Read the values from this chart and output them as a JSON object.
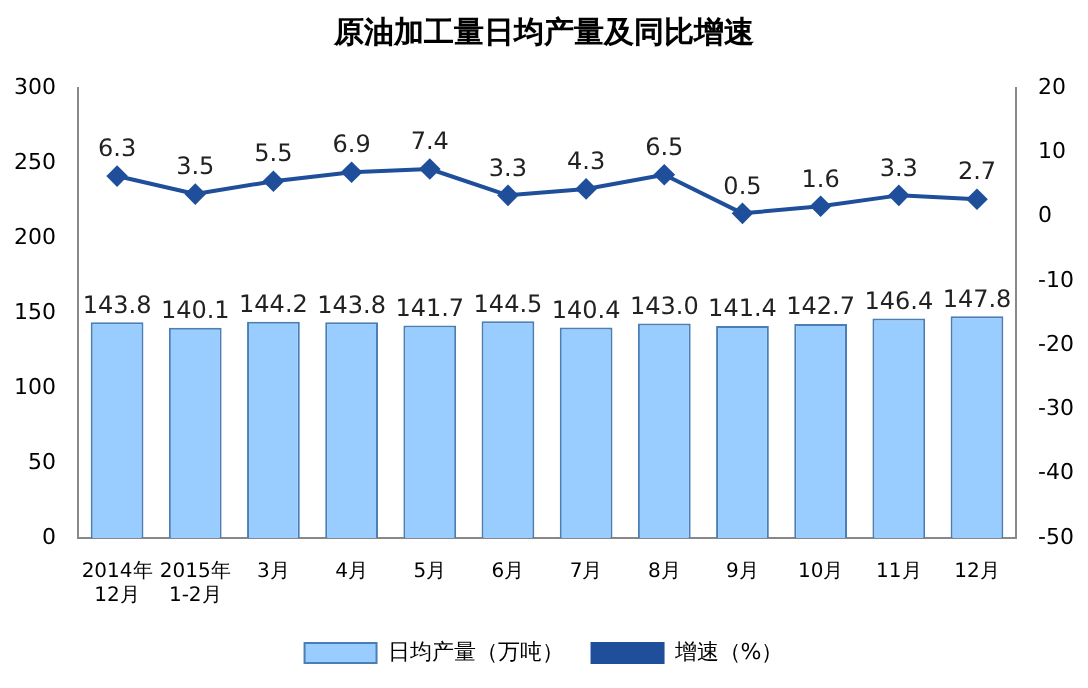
{
  "chart_data": {
    "type": "bar",
    "title": "原油加工量日均产量及同比增速",
    "categories": [
      "2014年\n12月",
      "2015年\n1-2月",
      "3月",
      "4月",
      "5月",
      "6月",
      "7月",
      "8月",
      "9月",
      "10月",
      "11月",
      "12月"
    ],
    "series": [
      {
        "name": "日均产量（万吨）",
        "color": "#99ccff",
        "values": [
          143.8,
          140.1,
          144.2,
          143.8,
          141.7,
          144.5,
          140.4,
          143.0,
          141.4,
          142.7,
          146.4,
          147.8
        ],
        "value_labels": [
          "143.8",
          "140.1",
          "144.2",
          "143.8",
          "141.7",
          "144.5",
          "140.4",
          "143.0",
          "141.4",
          "142.7",
          "146.4",
          "147.8"
        ]
      },
      {
        "name": "增速（%）",
        "type": "line",
        "axis": "y2",
        "color": "#1f4e9a",
        "values": [
          6.3,
          3.5,
          5.5,
          6.9,
          7.4,
          3.3,
          4.3,
          6.5,
          0.5,
          1.6,
          3.3,
          2.7
        ],
        "value_labels": [
          "6.3",
          "3.5",
          "5.5",
          "6.9",
          "7.4",
          "3.3",
          "4.3",
          "6.5",
          "0.5",
          "1.6",
          "3.3",
          "2.7"
        ]
      }
    ],
    "ylim": [
      0,
      300
    ],
    "yticks": [
      0,
      50,
      100,
      150,
      200,
      250,
      300
    ],
    "y2lim": [
      -50,
      20
    ],
    "y2ticks": [
      -50,
      -40,
      -30,
      -20,
      -10,
      0,
      10,
      20
    ],
    "grid": false,
    "legend": "bottom",
    "marker": "diamond",
    "line_style": "solid"
  }
}
